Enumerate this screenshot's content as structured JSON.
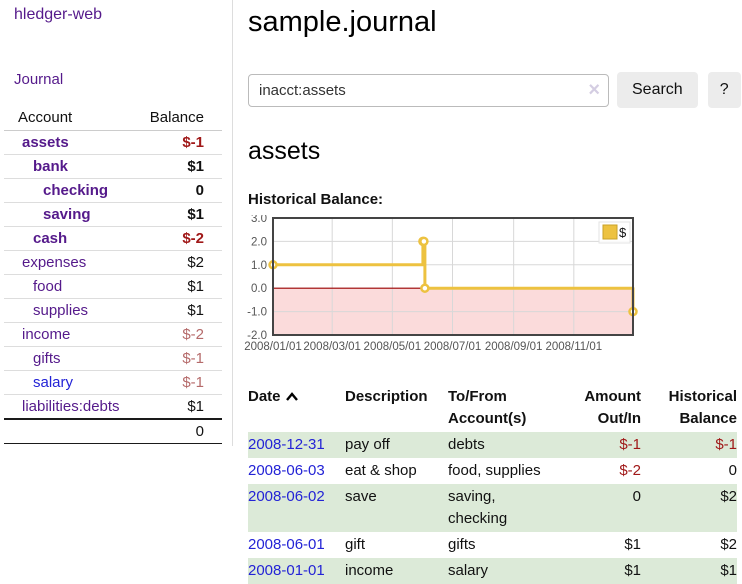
{
  "app": {
    "title": "hledger-web"
  },
  "sidebar": {
    "nav_journal": "Journal",
    "accounts": {
      "header_account": "Account",
      "header_balance": "Balance",
      "rows": [
        {
          "label": "assets",
          "depth": 1,
          "bold": true,
          "balance": "$-1",
          "neg": "strong",
          "link_color": "purple"
        },
        {
          "label": "bank",
          "depth": 2,
          "bold": true,
          "balance": "$1",
          "neg": "none",
          "link_color": "purple"
        },
        {
          "label": "checking",
          "depth": 3,
          "bold": true,
          "balance": "0",
          "neg": "none",
          "link_color": "purple"
        },
        {
          "label": "saving",
          "depth": 3,
          "bold": true,
          "balance": "$1",
          "neg": "none",
          "link_color": "purple"
        },
        {
          "label": "cash",
          "depth": 2,
          "bold": true,
          "balance": "$-2",
          "neg": "strong",
          "link_color": "purple"
        },
        {
          "label": "expenses",
          "depth": 1,
          "bold": false,
          "balance": "$2",
          "neg": "none",
          "link_color": "purple"
        },
        {
          "label": "food",
          "depth": 2,
          "bold": false,
          "balance": "$1",
          "neg": "none",
          "link_color": "purple"
        },
        {
          "label": "supplies",
          "depth": 2,
          "bold": false,
          "balance": "$1",
          "neg": "none",
          "link_color": "purple"
        },
        {
          "label": "income",
          "depth": 1,
          "bold": false,
          "balance": "$-2",
          "neg": "muted",
          "link_color": "purple"
        },
        {
          "label": "gifts",
          "depth": 2,
          "bold": false,
          "balance": "$-1",
          "neg": "muted",
          "link_color": "purple"
        },
        {
          "label": "salary",
          "depth": 2,
          "bold": false,
          "balance": "$-1",
          "neg": "muted",
          "link_color": "blue"
        },
        {
          "label": "liabilities:debts",
          "depth": 1,
          "bold": false,
          "balance": "$1",
          "neg": "none",
          "link_color": "purple"
        }
      ],
      "total": "0"
    }
  },
  "main": {
    "title": "sample.journal",
    "search": {
      "value": "inacct:assets",
      "clear_icon": "×",
      "search_button": "Search",
      "help_button": "?"
    },
    "account_heading": "assets",
    "chart_title": "Historical Balance:"
  },
  "chart_data": {
    "type": "line",
    "title": "Historical Balance:",
    "x_range": [
      "2008-01-01",
      "2008-12-31"
    ],
    "ylim": [
      -2,
      3
    ],
    "yticks": [
      "3.0",
      "2.0",
      "1.0",
      "0.0",
      "-1.0",
      "-2.0"
    ],
    "xticks": [
      "2008/01/01",
      "2008/03/01",
      "2008/05/01",
      "2008/07/01",
      "2008/09/01",
      "2008/11/01"
    ],
    "series": [
      {
        "name": "$",
        "color": "#edc240",
        "steps": true,
        "points": [
          [
            "2008-01-01",
            1
          ],
          [
            "2008-06-01",
            2
          ],
          [
            "2008-06-02",
            2
          ],
          [
            "2008-06-03",
            0
          ],
          [
            "2008-12-31",
            -1
          ]
        ]
      }
    ],
    "legend_position": "top-right",
    "grid": true,
    "negative_region_color": "#fbdbdb",
    "zero_line_color": "#990000"
  },
  "register": {
    "headers": {
      "date": "Date",
      "description": "Description",
      "accounts": "To/From Account(s)",
      "amount": "Amount Out/In",
      "balance": "Historical Balance"
    },
    "rows": [
      {
        "date": "2008-12-31",
        "description": "pay off",
        "accounts": "debts",
        "amount": "$-1",
        "amount_neg": true,
        "balance": "$-1",
        "balance_neg": true
      },
      {
        "date": "2008-06-03",
        "description": "eat & shop",
        "accounts": "food, supplies",
        "amount": "$-2",
        "amount_neg": true,
        "balance": "0",
        "balance_neg": false
      },
      {
        "date": "2008-06-02",
        "description": "save",
        "accounts": "saving, checking",
        "amount": "0",
        "amount_neg": false,
        "balance": "$2",
        "balance_neg": false
      },
      {
        "date": "2008-06-01",
        "description": "gift",
        "accounts": "gifts",
        "amount": "$1",
        "amount_neg": false,
        "balance": "$2",
        "balance_neg": false
      },
      {
        "date": "2008-01-01",
        "description": "income",
        "accounts": "salary",
        "amount": "$1",
        "amount_neg": false,
        "balance": "$1",
        "balance_neg": false
      }
    ]
  }
}
